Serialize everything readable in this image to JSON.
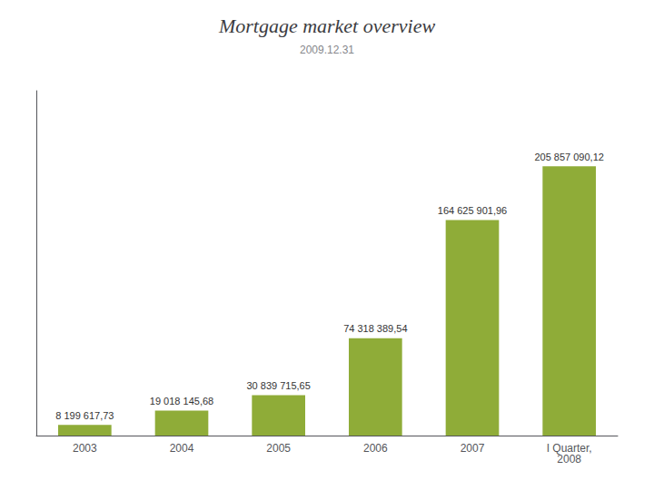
{
  "chart_data": {
    "type": "bar",
    "title": "Mortgage market overview",
    "subtitle": "2009.12.31",
    "categories": [
      "2003",
      "2004",
      "2005",
      "2006",
      "2007",
      "I Quarter,\n2008"
    ],
    "values": [
      8199617.73,
      19018145.68,
      30839715.65,
      74318389.54,
      164625901.96,
      205857090.12
    ],
    "value_labels": [
      "8 199 617,73",
      "19 018 145,68",
      "30 839 715,65",
      "74 318 389,54",
      "164 625 901,96",
      "205 857 090,12"
    ],
    "data_labels": true,
    "color": "#8fac38",
    "ylim": [
      0,
      263497075.3536
    ],
    "yticks": [],
    "tick_labels": "x",
    "grid": false
  }
}
